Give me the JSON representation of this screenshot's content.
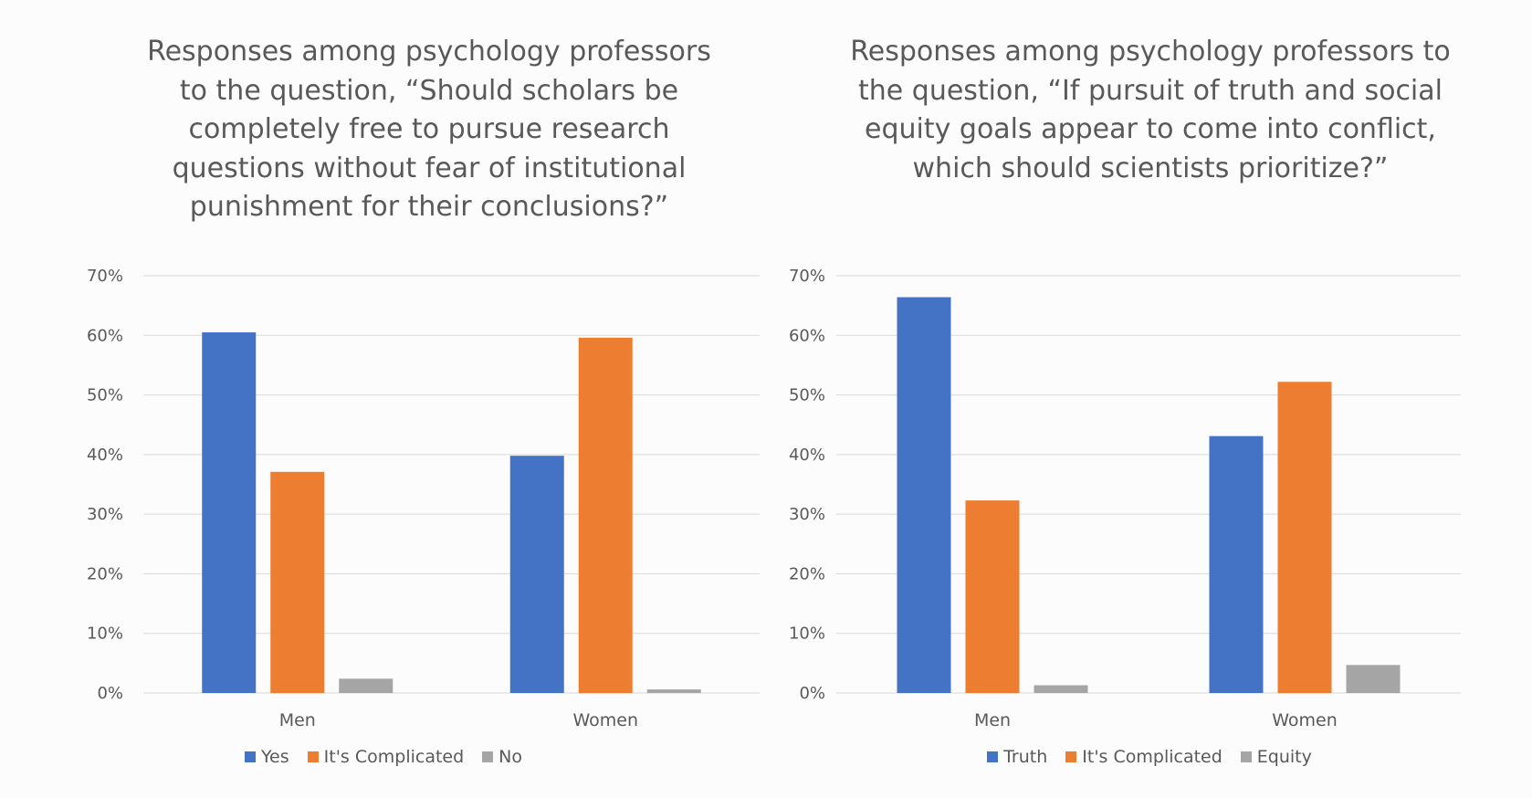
{
  "colors": {
    "blue": "#4472C4",
    "orange": "#ED7D31",
    "gray": "#A5A5A5",
    "grid": "#d9d9d9"
  },
  "chart_data": [
    {
      "type": "bar",
      "title": "Responses among psychology professors to the question, “Should scholars be completely free to pursue research questions without fear of institutional punishment for their conclusions?”",
      "categories": [
        "Men",
        "Women"
      ],
      "series": [
        {
          "name": "Yes",
          "values": [
            60.5,
            39.8
          ],
          "color": "#4472C4"
        },
        {
          "name": "It's Complicated",
          "values": [
            37.1,
            59.6
          ],
          "color": "#ED7D31"
        },
        {
          "name": "No",
          "values": [
            2.4,
            0.6
          ],
          "color": "#A5A5A5"
        }
      ],
      "ylim": [
        0,
        70
      ],
      "yticks": [
        "0%",
        "10%",
        "20%",
        "30%",
        "40%",
        "50%",
        "60%",
        "70%"
      ],
      "grid": true,
      "legend": "bottom"
    },
    {
      "type": "bar",
      "title": "Responses among psychology professors to the question, “If pursuit of truth and social equity goals appear to come into conflict, which should scientists prioritize?”",
      "categories": [
        "Men",
        "Women"
      ],
      "series": [
        {
          "name": "Truth",
          "values": [
            66.4,
            43.1
          ],
          "color": "#4472C4"
        },
        {
          "name": "It's Complicated",
          "values": [
            32.3,
            52.2
          ],
          "color": "#ED7D31"
        },
        {
          "name": "Equity",
          "values": [
            1.3,
            4.7
          ],
          "color": "#A5A5A5"
        }
      ],
      "ylim": [
        0,
        70
      ],
      "yticks": [
        "0%",
        "10%",
        "20%",
        "30%",
        "40%",
        "50%",
        "60%",
        "70%"
      ],
      "grid": true,
      "legend": "bottom"
    }
  ]
}
